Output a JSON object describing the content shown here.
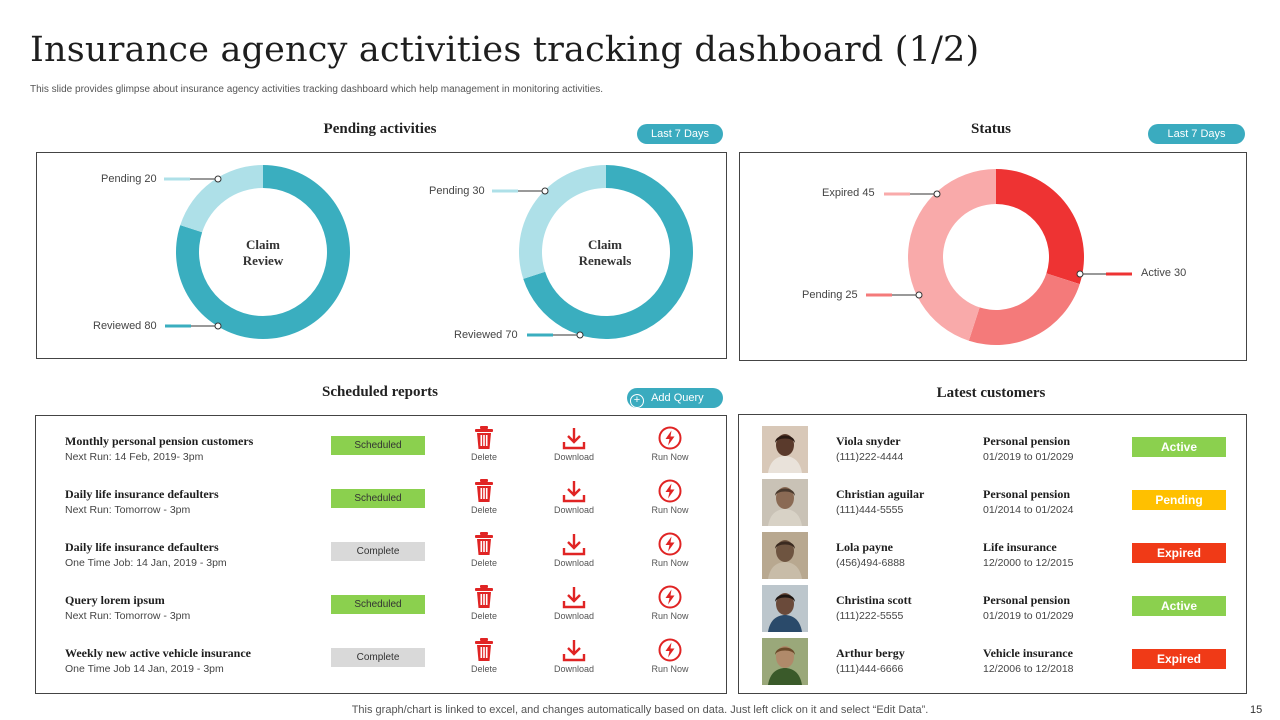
{
  "header": {
    "title": "Insurance agency activities tracking dashboard (1/2)",
    "subtitle": "This slide provides glimpse about insurance agency activities tracking dashboard which help management in monitoring activities."
  },
  "pending": {
    "title": "Pending activities",
    "filter_label": "Last 7 Days",
    "donuts": [
      {
        "center_line1": "Claim",
        "center_line2": "Review",
        "pending_label": "Pending 20",
        "reviewed_label": "Reviewed 80",
        "pending_value": 20,
        "reviewed_value": 80
      },
      {
        "center_line1": "Claim",
        "center_line2": "Renewals",
        "pending_label": "Pending 30",
        "reviewed_label": "Reviewed 70",
        "pending_value": 30,
        "reviewed_value": 70
      }
    ],
    "colors": {
      "reviewed": "#3aaebf",
      "pending": "#aee0e8"
    }
  },
  "status": {
    "title": "Status",
    "filter_label": "Last 7 Days",
    "labels": {
      "active": "Active 30",
      "expired": "Expired 45",
      "pending": "Pending 25"
    },
    "values": {
      "active": 30,
      "pending": 25,
      "expired": 45
    },
    "colors": {
      "active": "#ee3333",
      "pending": "#f47a7a",
      "expired": "#f9aaaa"
    }
  },
  "reports": {
    "title": "Scheduled reports",
    "add_query_label": "Add Query",
    "action_labels": {
      "delete": "Delete",
      "download": "Download",
      "run_now": "Run Now"
    },
    "items": [
      {
        "name": "Monthly personal pension customers",
        "next": "Next Run: 14 Feb, 2019- 3pm",
        "status": "Scheduled"
      },
      {
        "name": "Daily life insurance defaulters",
        "next": "Next Run: Tomorrow - 3pm",
        "status": "Scheduled"
      },
      {
        "name": "Daily life insurance defaulters",
        "next": "One Time Job: 14 Jan, 2019 - 3pm",
        "status": "Complete"
      },
      {
        "name": "Query lorem ipsum",
        "next": "Next Run: Tomorrow - 3pm",
        "status": "Scheduled"
      },
      {
        "name": "Weekly new active vehicle insurance",
        "next": "One Time Job 14 Jan, 2019 - 3pm",
        "status": "Complete"
      }
    ]
  },
  "customers": {
    "title": "Latest customers",
    "items": [
      {
        "name": "Viola snyder",
        "phone": "(111)222-4444",
        "plan": "Personal pension",
        "period": "01/2019 to 01/2029",
        "status": "Active",
        "status_color": "#8bd04e"
      },
      {
        "name": "Christian aguilar",
        "phone": "(111)444-5555",
        "plan": "Personal pension",
        "period": "01/2014 to 01/2024",
        "status": "Pending",
        "status_color": "#ffc000"
      },
      {
        "name": "Lola payne",
        "phone": "(456)494-6888",
        "plan": "Life insurance",
        "period": "12/2000 to 12/2015",
        "status": "Expired",
        "status_color": "#f03a17"
      },
      {
        "name": "Christina scott",
        "phone": "(111)222-5555",
        "plan": "Personal pension",
        "period": "01/2019 to 01/2029",
        "status": "Active",
        "status_color": "#8bd04e"
      },
      {
        "name": "Arthur bergy",
        "phone": "(111)444-6666",
        "plan": "Vehicle insurance",
        "period": "12/2006 to 12/2018",
        "status": "Expired",
        "status_color": "#f03a17"
      }
    ]
  },
  "footer": {
    "note": "This graph/chart is linked to excel, and changes automatically based on data. Just left click on it and select “Edit Data”.",
    "page_number": "15"
  }
}
